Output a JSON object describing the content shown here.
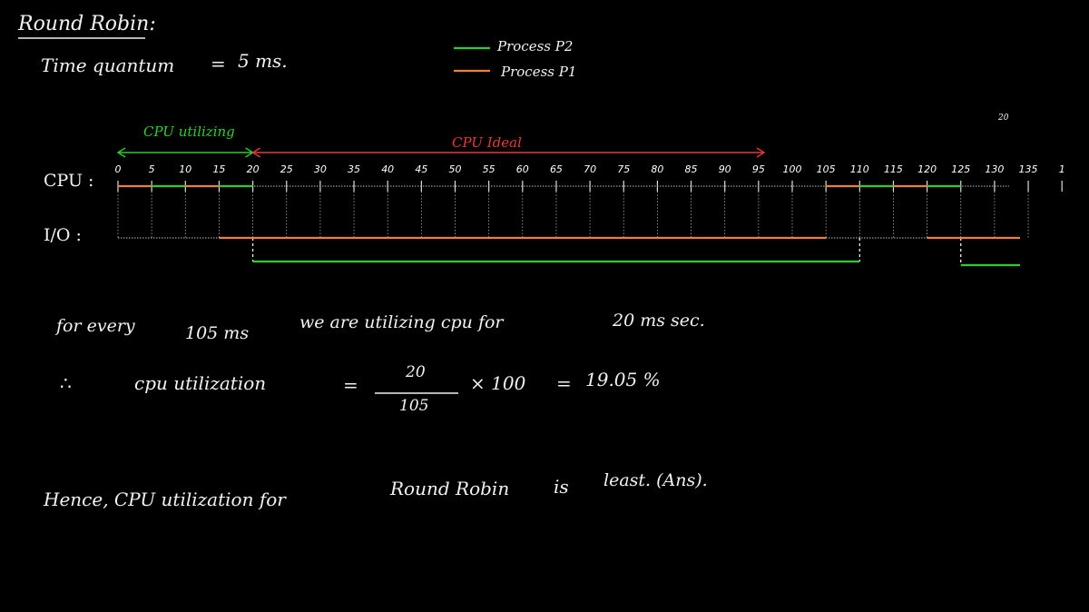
{
  "title": "Round Robin:",
  "quantum": {
    "label": "Time quantum",
    "equals": "=",
    "value": "5 ms."
  },
  "legend": [
    {
      "label": "Process P2",
      "color": "#2ecc2e"
    },
    {
      "label": "Process P1",
      "color": "#f07f3c"
    }
  ],
  "corner_mark": "20",
  "rows": {
    "cpu": "CPU :",
    "io": "I/O :"
  },
  "phase_labels": {
    "utilizing": "CPU utilizing",
    "idle": "CPU Ideal"
  },
  "colors": {
    "p2": "#2ecc2e",
    "p1": "#f07f3c",
    "idle_arrow": "#e23b3b",
    "util_text": "#2ecc2e",
    "idle_text": "#e23b3b"
  },
  "ticks": [
    "0",
    "5",
    "10",
    "15",
    "20",
    "25",
    "30",
    "35",
    "40",
    "45",
    "50",
    "55",
    "60",
    "65",
    "70",
    "75",
    "80",
    "85",
    "90",
    "95",
    "100",
    "105",
    "110",
    "115",
    "120",
    "125",
    "130",
    "135",
    "1"
  ],
  "cpu_segments": [
    {
      "start": 0,
      "end": 5,
      "process": "P1"
    },
    {
      "start": 5,
      "end": 10,
      "process": "P2"
    },
    {
      "start": 10,
      "end": 15,
      "process": "P1"
    },
    {
      "start": 15,
      "end": 20,
      "process": "P2"
    },
    {
      "start": 105,
      "end": 110,
      "process": "P1"
    },
    {
      "start": 110,
      "end": 115,
      "process": "P2"
    },
    {
      "start": 115,
      "end": 120,
      "process": "P1"
    },
    {
      "start": 120,
      "end": 125,
      "process": "P2"
    }
  ],
  "io_segments": [
    {
      "start": 15,
      "end": 105,
      "process": "P1"
    },
    {
      "start": 20,
      "end": 110,
      "process": "P2"
    },
    {
      "start": 120,
      "end": 140,
      "process": "P1"
    },
    {
      "start": 125,
      "end": 140,
      "process": "P2"
    }
  ],
  "statement": {
    "p1": "for every",
    "p2": "105 ms",
    "p3": "we are utilizing cpu for",
    "p4": "20 ms sec."
  },
  "formula": {
    "therefore": "∴",
    "label": "cpu utilization",
    "eq1": "=",
    "numerator": "20",
    "denominator": "105",
    "times": "× 100",
    "eq2": "=",
    "result": "19.05 %"
  },
  "conclusion": {
    "p1": "Hence, CPU utilization for",
    "p2": "Round Robin",
    "p3": "is",
    "p4": "least. (Ans)."
  }
}
